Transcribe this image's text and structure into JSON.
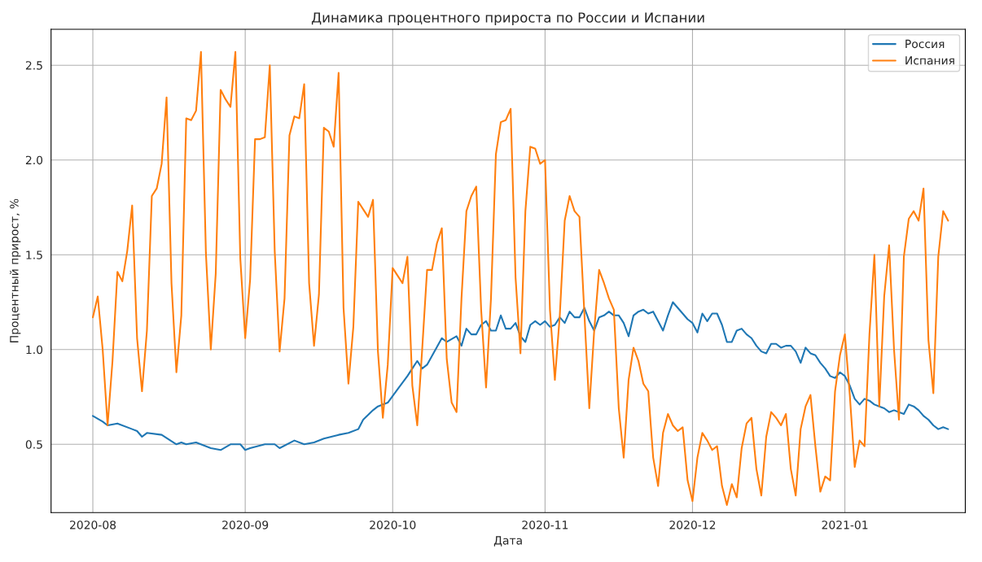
{
  "chart_data": {
    "type": "line",
    "title": "Динамика процентного прироста по России и Испании",
    "xlabel": "Дата",
    "ylabel": "Процентный прирост, %",
    "x": [
      "2020-08-01",
      "2020-08-02",
      "2020-08-03",
      "2020-08-04",
      "2020-08-05",
      "2020-08-06",
      "2020-08-07",
      "2020-08-08",
      "2020-08-09",
      "2020-08-10",
      "2020-08-11",
      "2020-08-12",
      "2020-08-13",
      "2020-08-14",
      "2020-08-15",
      "2020-08-16",
      "2020-08-17",
      "2020-08-18",
      "2020-08-19",
      "2020-08-20",
      "2020-08-21",
      "2020-08-22",
      "2020-08-23",
      "2020-08-24",
      "2020-08-25",
      "2020-08-26",
      "2020-08-27",
      "2020-08-28",
      "2020-08-29",
      "2020-08-30",
      "2020-08-31",
      "2020-09-01",
      "2020-09-02",
      "2020-09-03",
      "2020-09-04",
      "2020-09-05",
      "2020-09-06",
      "2020-09-07",
      "2020-09-08",
      "2020-09-09",
      "2020-09-10",
      "2020-09-11",
      "2020-09-12",
      "2020-09-13",
      "2020-09-14",
      "2020-09-15",
      "2020-09-16",
      "2020-09-17",
      "2020-09-18",
      "2020-09-19",
      "2020-09-20",
      "2020-09-21",
      "2020-09-22",
      "2020-09-23",
      "2020-09-24",
      "2020-09-25",
      "2020-09-26",
      "2020-09-27",
      "2020-09-28",
      "2020-09-29",
      "2020-09-30",
      "2020-10-01",
      "2020-10-02",
      "2020-10-03",
      "2020-10-04",
      "2020-10-05",
      "2020-10-06",
      "2020-10-07",
      "2020-10-08",
      "2020-10-09",
      "2020-10-10",
      "2020-10-11",
      "2020-10-12",
      "2020-10-13",
      "2020-10-14",
      "2020-10-15",
      "2020-10-16",
      "2020-10-17",
      "2020-10-18",
      "2020-10-19",
      "2020-10-20",
      "2020-10-21",
      "2020-10-22",
      "2020-10-23",
      "2020-10-24",
      "2020-10-25",
      "2020-10-26",
      "2020-10-27",
      "2020-10-28",
      "2020-10-29",
      "2020-10-30",
      "2020-10-31",
      "2020-11-01",
      "2020-11-02",
      "2020-11-03",
      "2020-11-04",
      "2020-11-05",
      "2020-11-06",
      "2020-11-07",
      "2020-11-08",
      "2020-11-09",
      "2020-11-10",
      "2020-11-11",
      "2020-11-12",
      "2020-11-13",
      "2020-11-14",
      "2020-11-15",
      "2020-11-16",
      "2020-11-17",
      "2020-11-18",
      "2020-11-19",
      "2020-11-20",
      "2020-11-21",
      "2020-11-22",
      "2020-11-23",
      "2020-11-24",
      "2020-11-25",
      "2020-11-26",
      "2020-11-27",
      "2020-11-28",
      "2020-11-29",
      "2020-11-30",
      "2020-12-01",
      "2020-12-02",
      "2020-12-03",
      "2020-12-04",
      "2020-12-05",
      "2020-12-06",
      "2020-12-07",
      "2020-12-08",
      "2020-12-09",
      "2020-12-10",
      "2020-12-11",
      "2020-12-12",
      "2020-12-13",
      "2020-12-14",
      "2020-12-15",
      "2020-12-16",
      "2020-12-17",
      "2020-12-18",
      "2020-12-19",
      "2020-12-20",
      "2020-12-21",
      "2020-12-22",
      "2020-12-23",
      "2020-12-24",
      "2020-12-25",
      "2020-12-26",
      "2020-12-27",
      "2020-12-28",
      "2020-12-29",
      "2020-12-30",
      "2020-12-31",
      "2021-01-01",
      "2021-01-02",
      "2021-01-03",
      "2021-01-04",
      "2021-01-05",
      "2021-01-06",
      "2021-01-07",
      "2021-01-08",
      "2021-01-09",
      "2021-01-10",
      "2021-01-11",
      "2021-01-12",
      "2021-01-13",
      "2021-01-14",
      "2021-01-15",
      "2021-01-16",
      "2021-01-17",
      "2021-01-18",
      "2021-01-19",
      "2021-01-20",
      "2021-01-21",
      "2021-01-22"
    ],
    "series": [
      {
        "name": "Россия",
        "color": "#1f77b4",
        "x": [
          "2020-08-01",
          "2020-08-03",
          "2020-08-04",
          "2020-08-06",
          "2020-08-09",
          "2020-08-10",
          "2020-08-11",
          "2020-08-12",
          "2020-08-15",
          "2020-08-18",
          "2020-08-19",
          "2020-08-20",
          "2020-08-22",
          "2020-08-25",
          "2020-08-27",
          "2020-08-29",
          "2020-08-31",
          "2020-09-01",
          "2020-09-02",
          "2020-09-05",
          "2020-09-07",
          "2020-09-08",
          "2020-09-11",
          "2020-09-13",
          "2020-09-15",
          "2020-09-17",
          "2020-09-20",
          "2020-09-22",
          "2020-09-24",
          "2020-09-25",
          "2020-09-27",
          "2020-09-28",
          "2020-09-30",
          "2020-10-02",
          "2020-10-04",
          "2020-10-06",
          "2020-10-07",
          "2020-10-08",
          "2020-10-11",
          "2020-10-12",
          "2020-10-14",
          "2020-10-15",
          "2020-10-16",
          "2020-10-17",
          "2020-10-18",
          "2020-10-19",
          "2020-10-20",
          "2020-10-21",
          "2020-10-22",
          "2020-10-23",
          "2020-10-24",
          "2020-10-25",
          "2020-10-26",
          "2020-10-27",
          "2020-10-28",
          "2020-10-29",
          "2020-10-30",
          "2020-10-31",
          "2020-11-01",
          "2020-11-02",
          "2020-11-03",
          "2020-11-04",
          "2020-11-05",
          "2020-11-06",
          "2020-11-07",
          "2020-11-08",
          "2020-11-09",
          "2020-11-10",
          "2020-11-11",
          "2020-11-12",
          "2020-11-13",
          "2020-11-14",
          "2020-11-15",
          "2020-11-16",
          "2020-11-17",
          "2020-11-18",
          "2020-11-19",
          "2020-11-20",
          "2020-11-21",
          "2020-11-22",
          "2020-11-23",
          "2020-11-24",
          "2020-11-25",
          "2020-11-26",
          "2020-11-27",
          "2020-11-28",
          "2020-11-29",
          "2020-11-30",
          "2020-12-01",
          "2020-12-02",
          "2020-12-03",
          "2020-12-04",
          "2020-12-05",
          "2020-12-06",
          "2020-12-07",
          "2020-12-08",
          "2020-12-09",
          "2020-12-10",
          "2020-12-11",
          "2020-12-12",
          "2020-12-13",
          "2020-12-14",
          "2020-12-15",
          "2020-12-16",
          "2020-12-17",
          "2020-12-18",
          "2020-12-19",
          "2020-12-20",
          "2020-12-21",
          "2020-12-22",
          "2020-12-23",
          "2020-12-24",
          "2020-12-25",
          "2020-12-26",
          "2020-12-27",
          "2020-12-28",
          "2020-12-29",
          "2020-12-30",
          "2020-12-31",
          "2021-01-01",
          "2021-01-02",
          "2021-01-03",
          "2021-01-04",
          "2021-01-05",
          "2021-01-06",
          "2021-01-07",
          "2021-01-08",
          "2021-01-09",
          "2021-01-10",
          "2021-01-11",
          "2021-01-12",
          "2021-01-13",
          "2021-01-14",
          "2021-01-15",
          "2021-01-16",
          "2021-01-17",
          "2021-01-18",
          "2021-01-19",
          "2021-01-20",
          "2021-01-21",
          "2021-01-22"
        ],
        "values": [
          0.65,
          0.62,
          0.6,
          0.61,
          0.58,
          0.57,
          0.54,
          0.56,
          0.55,
          0.5,
          0.51,
          0.5,
          0.51,
          0.48,
          0.47,
          0.5,
          0.5,
          0.47,
          0.48,
          0.5,
          0.5,
          0.48,
          0.52,
          0.5,
          0.51,
          0.53,
          0.55,
          0.56,
          0.58,
          0.63,
          0.68,
          0.7,
          0.72,
          0.79,
          0.86,
          0.94,
          0.9,
          0.92,
          1.06,
          1.04,
          1.07,
          1.02,
          1.11,
          1.08,
          1.08,
          1.13,
          1.15,
          1.1,
          1.1,
          1.18,
          1.11,
          1.11,
          1.14,
          1.07,
          1.04,
          1.13,
          1.15,
          1.13,
          1.15,
          1.12,
          1.13,
          1.17,
          1.14,
          1.2,
          1.17,
          1.17,
          1.22,
          1.15,
          1.1,
          1.17,
          1.18,
          1.2,
          1.18,
          1.18,
          1.14,
          1.07,
          1.18,
          1.2,
          1.21,
          1.19,
          1.2,
          1.15,
          1.1,
          1.18,
          1.25,
          1.22,
          1.19,
          1.16,
          1.14,
          1.09,
          1.19,
          1.15,
          1.19,
          1.19,
          1.13,
          1.04,
          1.04,
          1.1,
          1.11,
          1.08,
          1.06,
          1.02,
          0.99,
          0.98,
          1.03,
          1.03,
          1.01,
          1.02,
          1.02,
          0.99,
          0.93,
          1.01,
          0.98,
          0.97,
          0.93,
          0.9,
          0.86,
          0.85,
          0.88,
          0.86,
          0.81,
          0.74,
          0.71,
          0.74,
          0.73,
          0.71,
          0.7,
          0.69,
          0.67,
          0.68,
          0.67,
          0.66,
          0.71,
          0.7,
          0.68,
          0.65,
          0.63,
          0.6,
          0.58,
          0.59,
          0.58
        ]
      },
      {
        "name": "Испания",
        "color": "#ff7f0e",
        "values": [
          1.17,
          1.28,
          1.0,
          0.6,
          0.94,
          1.41,
          1.36,
          1.52,
          1.76,
          1.06,
          0.78,
          1.1,
          1.81,
          1.85,
          1.98,
          2.33,
          1.35,
          0.88,
          1.18,
          2.22,
          2.21,
          2.26,
          2.57,
          1.51,
          1.0,
          1.4,
          2.37,
          2.32,
          2.28,
          2.57,
          1.48,
          1.06,
          1.37,
          2.11,
          2.11,
          2.12,
          2.5,
          1.52,
          0.99,
          1.27,
          2.13,
          2.23,
          2.22,
          2.4,
          1.35,
          1.02,
          1.29,
          2.17,
          2.15,
          2.07,
          2.46,
          1.22,
          0.82,
          1.12,
          1.78,
          1.74,
          1.7,
          1.79,
          0.99,
          0.64,
          0.92,
          1.43,
          1.39,
          1.35,
          1.49,
          0.81,
          0.6,
          1.0,
          1.42,
          1.42,
          1.56,
          1.64,
          0.95,
          0.72,
          0.67,
          1.27,
          1.73,
          1.81,
          1.86,
          1.21,
          0.8,
          1.27,
          2.03,
          2.2,
          2.21,
          2.27,
          1.38,
          0.98,
          1.73,
          2.07,
          2.06,
          1.98,
          2.0,
          1.21,
          0.84,
          1.18,
          1.68,
          1.81,
          1.73,
          1.7,
          1.19,
          0.69,
          1.1,
          1.42,
          1.35,
          1.27,
          1.21,
          0.69,
          0.43,
          0.84,
          1.01,
          0.94,
          0.82,
          0.78,
          0.43,
          0.28,
          0.56,
          0.66,
          0.6,
          0.57,
          0.59,
          0.31,
          0.2,
          0.43,
          0.56,
          0.52,
          0.47,
          0.49,
          0.28,
          0.18,
          0.29,
          0.22,
          0.48,
          0.61,
          0.64,
          0.37,
          0.23,
          0.54,
          0.67,
          0.64,
          0.6,
          0.66,
          0.37,
          0.23,
          0.58,
          0.7,
          0.76,
          0.49,
          0.25,
          0.33,
          0.31,
          0.78,
          0.97,
          1.08,
          0.76,
          0.38,
          0.52,
          0.49,
          1.08,
          1.5,
          0.7,
          1.28,
          1.55,
          1.0,
          0.63,
          1.49,
          1.69,
          1.73,
          1.68,
          1.85,
          1.05,
          0.77,
          1.49,
          1.73,
          1.68
        ]
      }
    ],
    "xlim": [
      "2020-07-23T12:00",
      "2021-01-25T12:00"
    ],
    "xticks": [
      {
        "value": "2020-08-01",
        "label": "2020-08"
      },
      {
        "value": "2020-09-01",
        "label": "2020-09"
      },
      {
        "value": "2020-10-01",
        "label": "2020-10"
      },
      {
        "value": "2020-11-01",
        "label": "2020-11"
      },
      {
        "value": "2020-12-01",
        "label": "2020-12"
      },
      {
        "value": "2021-01-01",
        "label": "2021-01"
      }
    ],
    "ylim": [
      0.14,
      2.69
    ],
    "yticks": [
      0.5,
      {
        "value": 1,
        "label": "1.0"
      },
      1.5,
      {
        "value": 2,
        "label": "2.0"
      },
      2.5
    ],
    "grid": true,
    "legend": "top right"
  }
}
